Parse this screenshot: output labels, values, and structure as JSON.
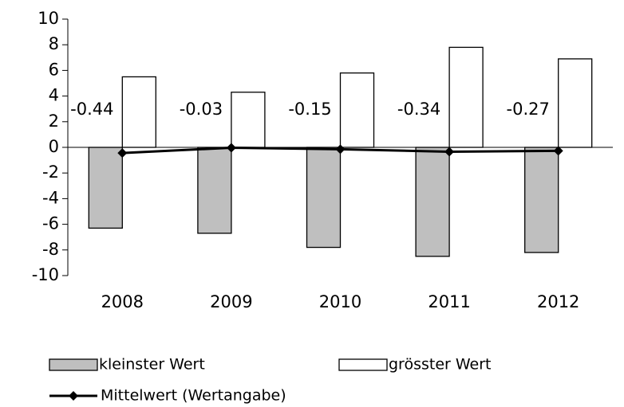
{
  "chart_data": {
    "type": "bar",
    "categories": [
      "2008",
      "2009",
      "2010",
      "2011",
      "2012"
    ],
    "series": [
      {
        "name": "kleinster Wert",
        "color": "#bfbfbf",
        "values": [
          -6.3,
          -6.7,
          -7.8,
          -8.5,
          -8.2
        ]
      },
      {
        "name": "grösster Wert",
        "color": "#ffffff",
        "values": [
          5.5,
          4.3,
          5.8,
          7.8,
          6.9
        ]
      },
      {
        "name": "Mittelwert (Wertangabe)",
        "type": "line",
        "color": "#000000",
        "values": [
          -0.44,
          -0.03,
          -0.15,
          -0.34,
          -0.27
        ],
        "data_labels": true
      }
    ],
    "ylim": [
      -10,
      10
    ],
    "yticks": [
      -10,
      -8,
      -6,
      -4,
      -2,
      0,
      2,
      4,
      6,
      8,
      10
    ],
    "grid": false
  }
}
